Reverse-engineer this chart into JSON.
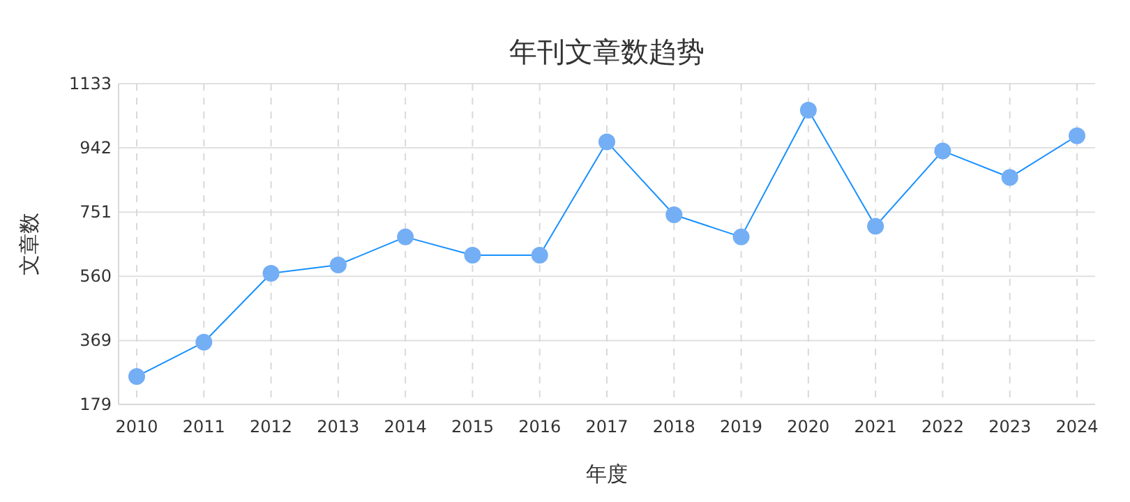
{
  "chart_data": {
    "type": "line",
    "title": "年刊文章数趋势",
    "xlabel": "年度",
    "ylabel": "文章数",
    "categories": [
      "2010",
      "2011",
      "2012",
      "2013",
      "2014",
      "2015",
      "2016",
      "2017",
      "2018",
      "2019",
      "2020",
      "2021",
      "2022",
      "2023",
      "2024"
    ],
    "series": [
      {
        "color": "#1890ff",
        "values": [
          262,
          364,
          569,
          594,
          677,
          623,
          623,
          960,
          743,
          677,
          1054,
          709,
          933,
          854,
          978
        ]
      }
    ],
    "ylim": [
      179,
      1133
    ],
    "yticks": [
      179,
      369,
      560,
      751,
      942,
      1133
    ],
    "grid": true,
    "marker": "circle",
    "line_style": "solid"
  }
}
